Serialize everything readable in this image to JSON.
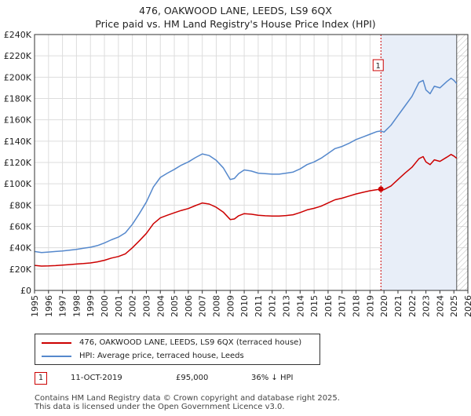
{
  "header": {
    "title": "476, OAKWOOD LANE, LEEDS, LS9 6QX",
    "subtitle": "Price paid vs. HM Land Registry's House Price Index (HPI)"
  },
  "legend": {
    "property_label": "476, OAKWOOD LANE, LEEDS, LS9 6QX (terraced house)",
    "hpi_label": "HPI: Average price, terraced house, Leeds"
  },
  "sale": {
    "marker": "1",
    "date": "11-OCT-2019",
    "price": "£95,000",
    "hpi_diff": "36% ↓ HPI"
  },
  "footer": {
    "line1": "Contains HM Land Registry data © Crown copyright and database right 2025.",
    "line2": "This data is licensed under the Open Government Licence v3.0."
  },
  "colors": {
    "property": "#cc0000",
    "hpi": "#5588cc",
    "shade": "#e8eef8",
    "grid": "#dddddd"
  },
  "chart_data": {
    "type": "line",
    "title": "476, OAKWOOD LANE, LEEDS, LS9 6QX",
    "subtitle": "Price paid vs. HM Land Registry's House Price Index (HPI)",
    "xlabel": "",
    "ylabel": "",
    "xlim": [
      1995,
      2026
    ],
    "ylim": [
      0,
      240000
    ],
    "grid": true,
    "x_ticks": [
      1995,
      1996,
      1997,
      1998,
      1999,
      2000,
      2001,
      2002,
      2003,
      2004,
      2005,
      2006,
      2007,
      2008,
      2009,
      2010,
      2011,
      2012,
      2013,
      2014,
      2015,
      2016,
      2017,
      2018,
      2019,
      2020,
      2021,
      2022,
      2023,
      2024,
      2025,
      2026
    ],
    "y_ticks": [
      {
        "value": 0,
        "label": "£0"
      },
      {
        "value": 20000,
        "label": "£20K"
      },
      {
        "value": 40000,
        "label": "£40K"
      },
      {
        "value": 60000,
        "label": "£60K"
      },
      {
        "value": 80000,
        "label": "£80K"
      },
      {
        "value": 100000,
        "label": "£100K"
      },
      {
        "value": 120000,
        "label": "£120K"
      },
      {
        "value": 140000,
        "label": "£140K"
      },
      {
        "value": 160000,
        "label": "£160K"
      },
      {
        "value": 180000,
        "label": "£180K"
      },
      {
        "value": 200000,
        "label": "£200K"
      },
      {
        "value": 220000,
        "label": "£220K"
      },
      {
        "value": 240000,
        "label": "£240K"
      }
    ],
    "shaded_region": {
      "from": 2019.78,
      "to": 2025.2
    },
    "future_hatch": {
      "from": 2025.2,
      "to": 2026
    },
    "sale_line_x": 2019.78,
    "annotations": [
      {
        "label": "1",
        "x": 2019.78,
        "y": 95000
      }
    ],
    "series": [
      {
        "name": "476, OAKWOOD LANE, LEEDS, LS9 6QX (terraced house)",
        "color": "#cc0000",
        "x": [
          1995,
          1995.5,
          1996,
          1996.5,
          1997,
          1997.5,
          1998,
          1998.5,
          1999,
          1999.5,
          2000,
          2000.5,
          2001,
          2001.5,
          2002,
          2002.5,
          2003,
          2003.5,
          2004,
          2004.5,
          2005,
          2005.5,
          2006,
          2006.5,
          2007,
          2007.5,
          2008,
          2008.5,
          2009,
          2009.3,
          2009.6,
          2010,
          2010.5,
          2011,
          2011.5,
          2012,
          2012.5,
          2013,
          2013.5,
          2014,
          2014.5,
          2015,
          2015.5,
          2016,
          2016.5,
          2017,
          2017.5,
          2018,
          2018.5,
          2019,
          2019.5,
          2019.78,
          2020,
          2020.5,
          2021,
          2021.5,
          2022,
          2022.5,
          2022.8,
          2023,
          2023.3,
          2023.6,
          2024,
          2024.5,
          2024.8,
          2025,
          2025.2
        ],
        "values": [
          23500,
          22800,
          23000,
          23300,
          23800,
          24200,
          24700,
          25200,
          25800,
          26800,
          28300,
          30300,
          31800,
          34300,
          40000,
          46500,
          53500,
          62500,
          68000,
          70500,
          72800,
          75000,
          76800,
          79500,
          82000,
          81000,
          78000,
          73500,
          66500,
          67000,
          70000,
          72000,
          71500,
          70500,
          70000,
          69800,
          69800,
          70200,
          71000,
          73000,
          75500,
          77000,
          79000,
          82000,
          85000,
          86500,
          88500,
          90500,
          92000,
          93500,
          94500,
          95000,
          94500,
          98000,
          104000,
          110000,
          115500,
          123500,
          125500,
          120500,
          118000,
          122500,
          121000,
          125000,
          127500,
          126000,
          124000
        ]
      },
      {
        "name": "HPI: Average price, terraced house, Leeds",
        "color": "#5588cc",
        "x": [
          1995,
          1995.5,
          1996,
          1996.5,
          1997,
          1997.5,
          1998,
          1998.5,
          1999,
          1999.5,
          2000,
          2000.5,
          2001,
          2001.5,
          2002,
          2002.5,
          2003,
          2003.5,
          2004,
          2004.5,
          2005,
          2005.5,
          2006,
          2006.5,
          2007,
          2007.5,
          2008,
          2008.5,
          2009,
          2009.3,
          2009.6,
          2010,
          2010.5,
          2011,
          2011.5,
          2012,
          2012.5,
          2013,
          2013.5,
          2014,
          2014.5,
          2015,
          2015.5,
          2016,
          2016.5,
          2017,
          2017.5,
          2018,
          2018.5,
          2019,
          2019.5,
          2019.78,
          2020,
          2020.5,
          2021,
          2021.5,
          2022,
          2022.5,
          2022.8,
          2023,
          2023.3,
          2023.6,
          2024,
          2024.5,
          2024.8,
          2025,
          2025.2
        ],
        "values": [
          36500,
          35500,
          36000,
          36500,
          37000,
          37800,
          38500,
          39500,
          40500,
          42000,
          44500,
          47500,
          50000,
          54000,
          62000,
          72000,
          83000,
          97000,
          106000,
          110000,
          113500,
          117500,
          120500,
          124500,
          128000,
          126500,
          122000,
          115000,
          104000,
          105000,
          109500,
          113000,
          112000,
          110000,
          109500,
          109000,
          109000,
          110000,
          111000,
          114000,
          118000,
          120500,
          124000,
          128500,
          133000,
          135000,
          138000,
          141500,
          144000,
          146500,
          149000,
          149500,
          148500,
          155000,
          164000,
          173000,
          182000,
          195000,
          197000,
          188000,
          184500,
          191500,
          190000,
          196000,
          199000,
          197000,
          194000
        ]
      }
    ]
  }
}
